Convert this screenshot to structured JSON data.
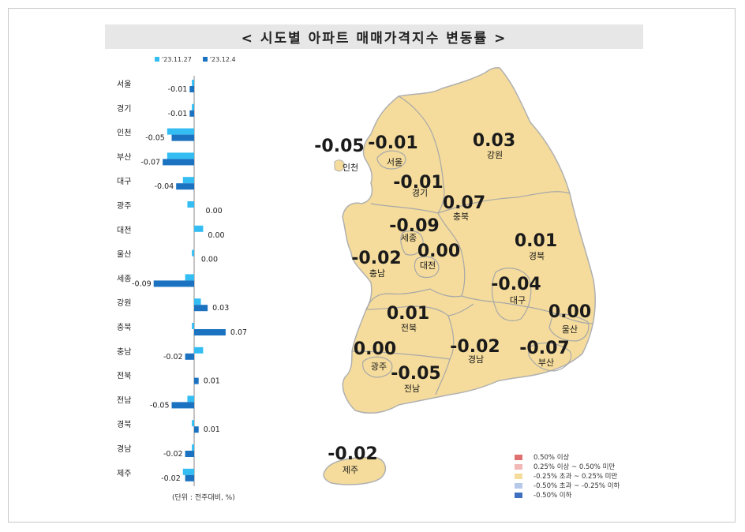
{
  "title": "< 시도별 아파트 매매가격지수 변동률 >",
  "legend": {
    "series1": "'23.11.27",
    "series2": "'23.12.4"
  },
  "unit_note": "(단위 : 전주대비, %)",
  "colors": {
    "series1": "#33bdf2",
    "series2": "#1a72c0",
    "map_fill": "#f5dc9c",
    "map_stroke": "#b0b0b0"
  },
  "chart_data": {
    "type": "bar",
    "orientation": "horizontal",
    "categories": [
      "서울",
      "경기",
      "인천",
      "부산",
      "대구",
      "광주",
      "대전",
      "울산",
      "세종",
      "강원",
      "충북",
      "충남",
      "전북",
      "전남",
      "경북",
      "경남",
      "제주"
    ],
    "series": [
      {
        "name": "'23.11.27",
        "values": [
          -0.005,
          -0.005,
          -0.06,
          -0.06,
          -0.025,
          -0.015,
          0.02,
          -0.005,
          -0.02,
          0.015,
          -0.005,
          0.02,
          0.0,
          -0.015,
          -0.005,
          -0.005,
          -0.025
        ]
      },
      {
        "name": "'23.12.4",
        "values": [
          -0.01,
          -0.01,
          -0.05,
          -0.07,
          -0.04,
          0.0,
          0.0,
          0.0,
          -0.09,
          0.03,
          0.07,
          -0.02,
          0.01,
          -0.05,
          0.01,
          -0.02,
          -0.02
        ]
      }
    ],
    "labels": [
      "-0.01",
      "-0.01",
      "-0.05",
      "-0.07",
      "-0.04",
      "0.00",
      "0.00",
      "0.00",
      "-0.09",
      "0.03",
      "0.07",
      "-0.02",
      "0.01",
      "-0.05",
      "0.01",
      "-0.02",
      "-0.02"
    ]
  },
  "map": {
    "regions": [
      {
        "name": "인천",
        "value": "-0.05"
      },
      {
        "name": "서울",
        "value": "-0.01"
      },
      {
        "name": "경기",
        "value": "-0.01"
      },
      {
        "name": "강원",
        "value": "0.03"
      },
      {
        "name": "충북",
        "value": "0.07"
      },
      {
        "name": "세종",
        "value": "-0.09"
      },
      {
        "name": "대전",
        "value": "0.00"
      },
      {
        "name": "충남",
        "value": "-0.02"
      },
      {
        "name": "경북",
        "value": "0.01"
      },
      {
        "name": "대구",
        "value": "-0.04"
      },
      {
        "name": "울산",
        "value": "0.00"
      },
      {
        "name": "전북",
        "value": "0.01"
      },
      {
        "name": "광주",
        "value": "0.00"
      },
      {
        "name": "경남",
        "value": "-0.02"
      },
      {
        "name": "부산",
        "value": "-0.07"
      },
      {
        "name": "전남",
        "value": "-0.05"
      },
      {
        "name": "제주",
        "value": "-0.02"
      }
    ]
  },
  "map_legend": [
    {
      "label": "0.50% 이상",
      "color": "#e07070"
    },
    {
      "label": "0.25% 이상 ~ 0.50% 미만",
      "color": "#f2b8b8"
    },
    {
      "label": "-0.25% 초과 ~ 0.25% 미만",
      "color": "#f5dc9c"
    },
    {
      "label": "-0.50% 초과 ~ -0.25% 이하",
      "color": "#b7c9e8"
    },
    {
      "label": "-0.50% 이하",
      "color": "#3f6fbf"
    }
  ]
}
